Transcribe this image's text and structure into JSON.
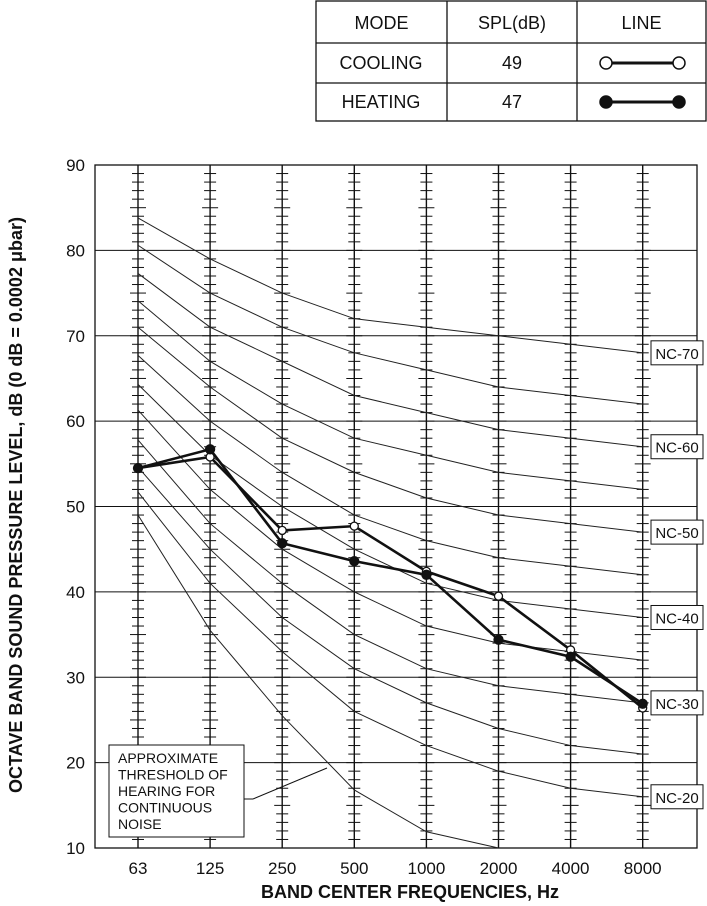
{
  "legend": {
    "headers": [
      "MODE",
      "SPL(dB)",
      "LINE"
    ],
    "rows": [
      {
        "mode": "COOLING",
        "spl": "49",
        "marker": "open-circle"
      },
      {
        "mode": "HEATING",
        "spl": "47",
        "marker": "filled-circle"
      }
    ]
  },
  "chart_data": {
    "type": "line",
    "xlabel": "BAND CENTER FREQUENCIES, Hz",
    "ylabel": "OCTAVE BAND SOUND PRESSURE LEVEL, dB (0 dB = 0.0002 μbar)",
    "categories": [
      "63",
      "125",
      "250",
      "500",
      "1000",
      "2000",
      "4000",
      "8000"
    ],
    "ylim": [
      10,
      90
    ],
    "yticks": [
      10,
      20,
      30,
      40,
      50,
      60,
      70,
      80,
      90
    ],
    "grid": true,
    "series": [
      {
        "name": "COOLING",
        "marker": "open-circle",
        "values": [
          54.5,
          55.8,
          47.2,
          47.7,
          42.4,
          39.5,
          33.2,
          26.4
        ]
      },
      {
        "name": "HEATING",
        "marker": "filled-circle",
        "values": [
          54.5,
          56.7,
          45.7,
          43.6,
          42.0,
          34.4,
          32.4,
          26.9
        ]
      }
    ],
    "nc_curves": [
      {
        "label": "NC-70",
        "values": [
          83.8,
          79,
          75,
          72,
          71,
          70,
          69,
          68
        ]
      },
      {
        "label": "",
        "values": [
          80.6,
          75,
          71,
          68,
          66,
          64,
          63,
          62
        ]
      },
      {
        "label": "NC-60",
        "values": [
          77.3,
          71,
          67,
          63,
          61,
          59,
          58,
          57
        ]
      },
      {
        "label": "",
        "values": [
          74.1,
          67,
          62,
          58,
          56,
          54,
          53,
          52
        ]
      },
      {
        "label": "NC-50",
        "values": [
          71,
          64,
          58,
          54,
          51,
          49,
          48,
          47
        ]
      },
      {
        "label": "",
        "values": [
          67.7,
          60,
          54,
          49,
          46,
          44,
          43,
          42
        ]
      },
      {
        "label": "NC-40",
        "values": [
          64.3,
          56,
          50,
          45,
          41,
          39,
          38,
          37
        ]
      },
      {
        "label": "",
        "values": [
          61.3,
          52,
          45,
          40,
          36,
          34,
          33,
          32
        ]
      },
      {
        "label": "NC-30",
        "values": [
          57.8,
          48,
          41,
          35,
          31,
          29,
          28,
          27
        ]
      },
      {
        "label": "",
        "values": [
          54.6,
          45,
          37,
          31,
          27,
          24,
          22,
          21
        ]
      },
      {
        "label": "NC-20",
        "values": [
          51.7,
          41,
          33,
          26,
          22,
          19,
          17,
          16
        ]
      }
    ],
    "threshold_curve": {
      "values": [
        49,
        35.5,
        25.5,
        16.8,
        11.9,
        10
      ]
    },
    "annotation": "APPROXIMATE THRESHOLD OF HEARING FOR CONTINUOUS NOISE"
  }
}
